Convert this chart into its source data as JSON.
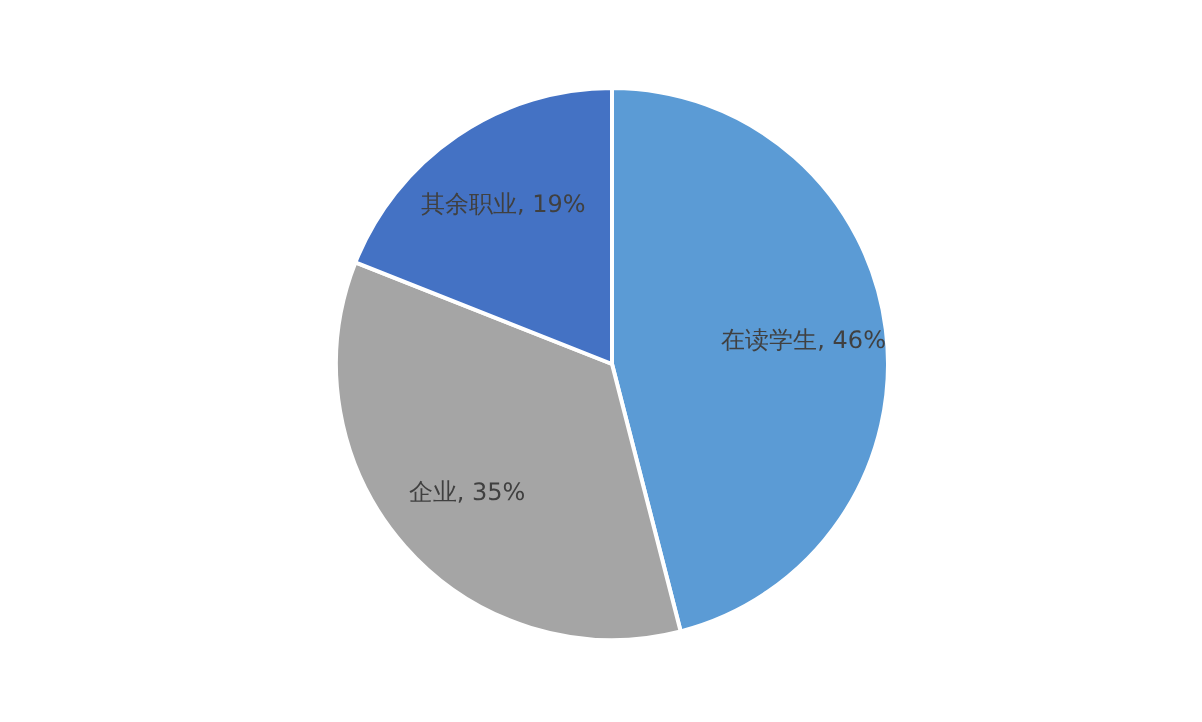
{
  "chart_data": {
    "type": "pie",
    "categories": [
      "在读学生",
      "企业",
      "其余职业"
    ],
    "values": [
      46,
      35,
      19
    ],
    "value_labels": [
      "46%",
      "35%",
      "19%"
    ],
    "colors": [
      "#5b9bd5",
      "#a5a5a5",
      "#4472c4"
    ],
    "legend": false
  }
}
